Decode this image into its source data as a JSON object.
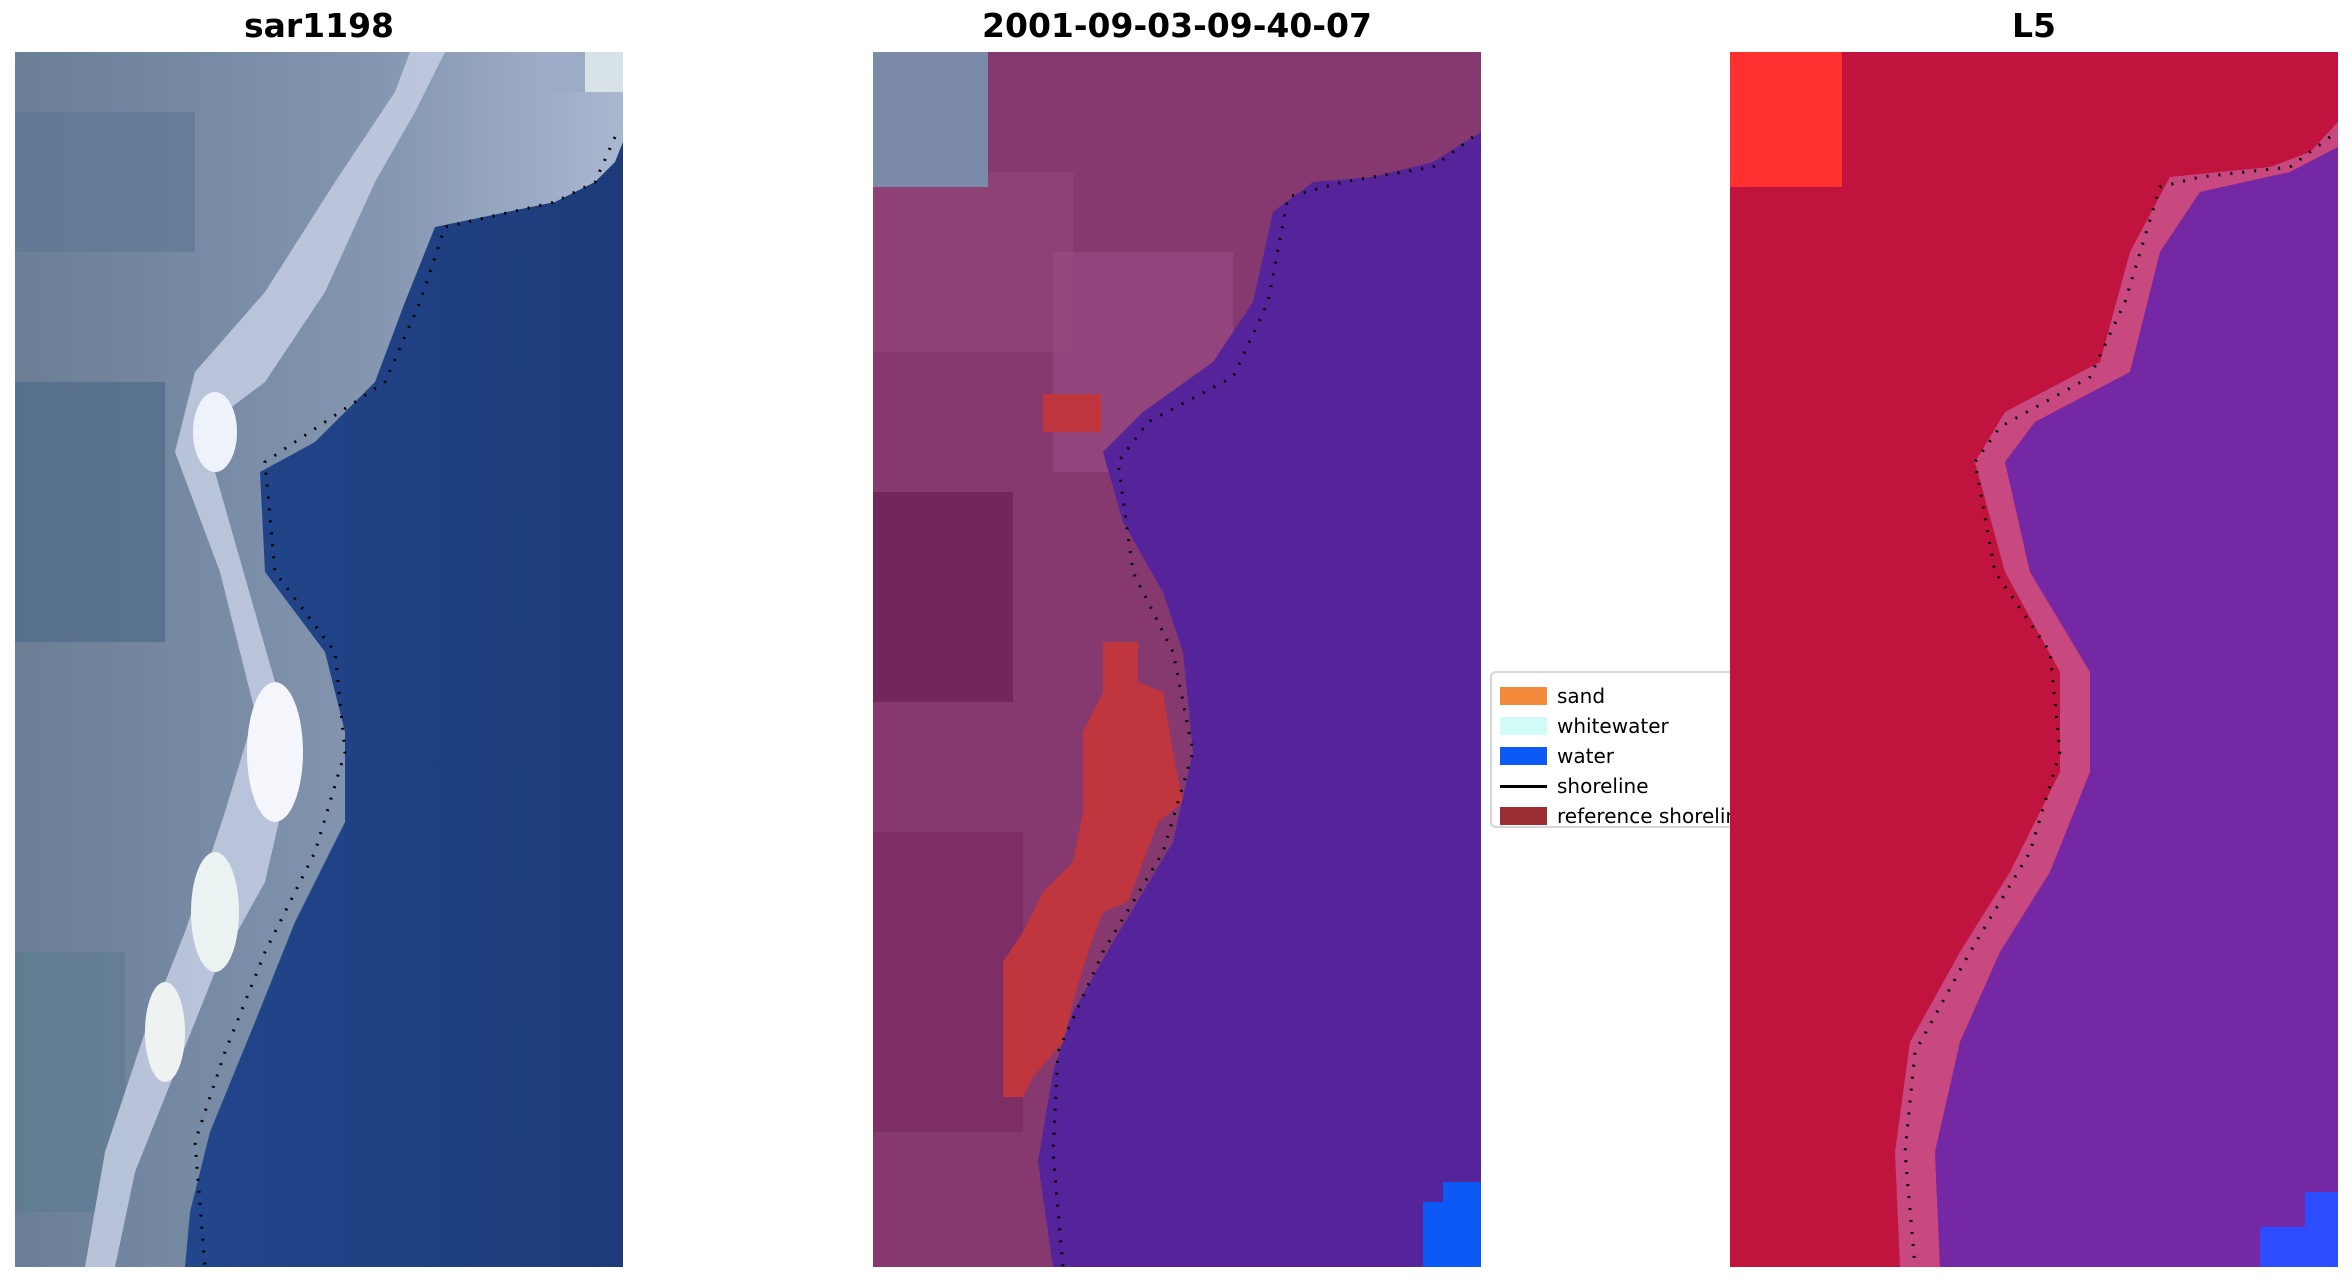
{
  "panels": {
    "left": {
      "title": "sar1198"
    },
    "center": {
      "title": "2001-09-03-09-40-07"
    },
    "right": {
      "title": "L5"
    }
  },
  "legend": {
    "items": [
      {
        "label": "sand",
        "kind": "patch",
        "color": "#f5893b"
      },
      {
        "label": "whitewater",
        "kind": "patch",
        "color": "#d0fbf6"
      },
      {
        "label": "water",
        "kind": "patch",
        "color": "#0d59f5"
      },
      {
        "label": "shoreline",
        "kind": "line",
        "color": "#000000"
      },
      {
        "label": "reference shoreline",
        "kind": "patch",
        "color": "#9b2e35"
      }
    ]
  },
  "colors": {
    "rgb_land": "#7f95b3",
    "rgb_water": "#1d3f82",
    "rgb_surf": "#e9eef7",
    "swir_land": "#883a6f",
    "swir_water": "#55249a",
    "swir_highlight": "#c0363f",
    "index_land": "#c41240",
    "index_water": "#7329a6",
    "index_bright": "#ff3030",
    "corner_blue": "#2b4cff",
    "shoreline": "#000000"
  }
}
